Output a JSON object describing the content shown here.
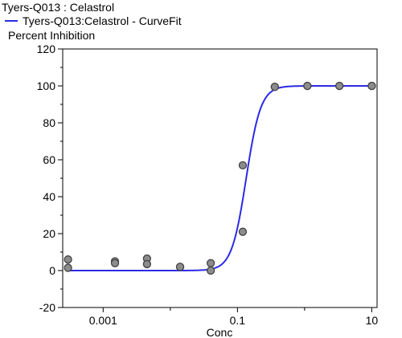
{
  "chart_data": {
    "type": "scatter",
    "title": "Tyers-Q013  : Celastrol",
    "legend": [
      {
        "label": "Tyers-Q013:Celastrol - CurveFit",
        "color": "#2a2ae6"
      }
    ],
    "ylabel": "Percent Inhibition",
    "xlabel": "Conc",
    "x_scale": "log",
    "xlim": [
      0.00025,
      12
    ],
    "ylim": [
      -20,
      120
    ],
    "x_ticks": [
      {
        "value": 0.001,
        "label": "0.001"
      },
      {
        "value": 0.1,
        "label": "0.1"
      },
      {
        "value": 10,
        "label": "10"
      }
    ],
    "y_ticks": [
      {
        "value": -20,
        "label": "-20"
      },
      {
        "value": 0,
        "label": "0"
      },
      {
        "value": 20,
        "label": "20"
      },
      {
        "value": 40,
        "label": "40"
      },
      {
        "value": 60,
        "label": "60"
      },
      {
        "value": 80,
        "label": "80"
      },
      {
        "value": 100,
        "label": "100"
      },
      {
        "value": 120,
        "label": "120"
      }
    ],
    "points": [
      {
        "x": 0.0003,
        "y": 6
      },
      {
        "x": 0.0003,
        "y": 1.5
      },
      {
        "x": 0.0015,
        "y": 5
      },
      {
        "x": 0.0015,
        "y": 4
      },
      {
        "x": 0.0045,
        "y": 6.5
      },
      {
        "x": 0.0045,
        "y": 3.5
      },
      {
        "x": 0.014,
        "y": 2
      },
      {
        "x": 0.014,
        "y": 2
      },
      {
        "x": 0.04,
        "y": 4
      },
      {
        "x": 0.04,
        "y": 0
      },
      {
        "x": 0.12,
        "y": 57
      },
      {
        "x": 0.12,
        "y": 21
      },
      {
        "x": 0.36,
        "y": 99.5
      },
      {
        "x": 0.36,
        "y": 99.5
      },
      {
        "x": 1.1,
        "y": 100
      },
      {
        "x": 1.1,
        "y": 100
      },
      {
        "x": 3.3,
        "y": 100
      },
      {
        "x": 3.3,
        "y": 100
      },
      {
        "x": 10,
        "y": 100
      },
      {
        "x": 10,
        "y": 100
      }
    ],
    "curve_fit": {
      "bottom": 0,
      "top": 100,
      "ec50": 0.135,
      "hill": 4
    },
    "colors": {
      "curve": "#2a2ae6",
      "point_fill": "#8c8c8c",
      "point_stroke": "#444444"
    },
    "grid": false
  }
}
